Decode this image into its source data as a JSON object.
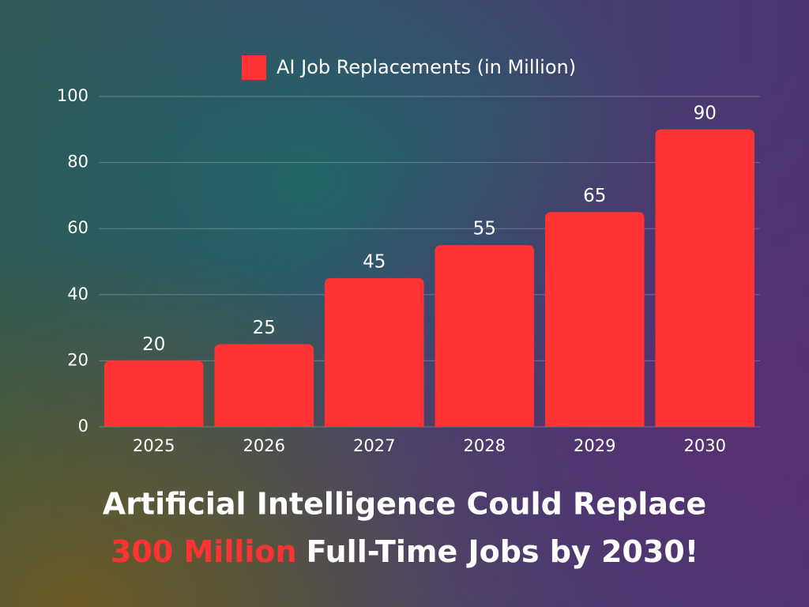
{
  "chart_data": {
    "type": "bar",
    "legend": "AI Job Replacements (in Million)",
    "categories": [
      "2025",
      "2026",
      "2027",
      "2028",
      "2029",
      "2030"
    ],
    "values": [
      20,
      25,
      45,
      55,
      65,
      90
    ],
    "color": "#ff3333",
    "ylim": [
      0,
      100
    ],
    "yticks": [
      0,
      20,
      40,
      60,
      80,
      100
    ],
    "grid": true,
    "caption": {
      "line1": "Artificial Intelligence Could Replace",
      "highlight": "300 Million",
      "rest": "Full-Time Jobs by 2030!"
    }
  }
}
